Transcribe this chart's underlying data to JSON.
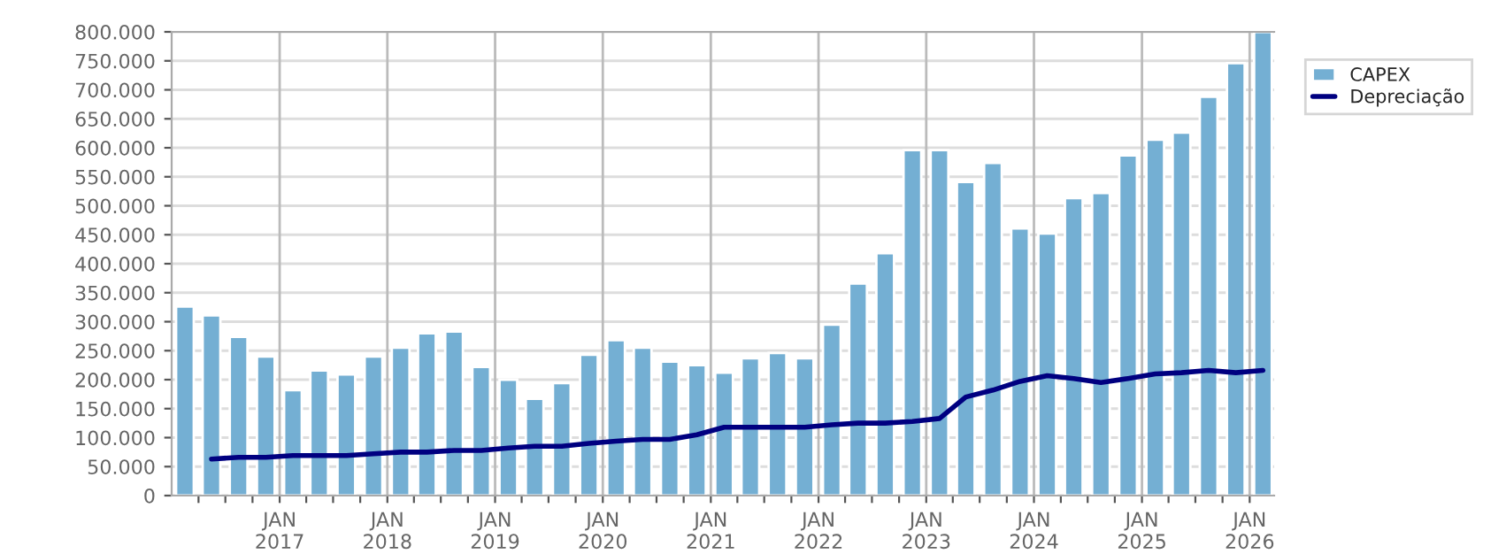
{
  "chart_data": {
    "type": "bar",
    "x": [
      "2016-02-15",
      "2016-05-15",
      "2016-08-15",
      "2016-11-15",
      "2017-02-15",
      "2017-05-15",
      "2017-08-15",
      "2017-11-15",
      "2018-02-15",
      "2018-05-15",
      "2018-08-15",
      "2018-11-15",
      "2019-02-15",
      "2019-05-15",
      "2019-08-15",
      "2019-11-15",
      "2020-02-15",
      "2020-05-15",
      "2020-08-15",
      "2020-11-15",
      "2021-02-15",
      "2021-05-15",
      "2021-08-15",
      "2021-11-15",
      "2022-02-15",
      "2022-05-15",
      "2022-08-15",
      "2022-11-15",
      "2023-02-15",
      "2023-05-15",
      "2023-08-15",
      "2023-11-15",
      "2024-02-15",
      "2024-05-15",
      "2024-08-15",
      "2024-11-15",
      "2025-02-15",
      "2025-05-15",
      "2025-08-15",
      "2025-11-15",
      "2026-02-15"
    ],
    "series": [
      {
        "name": "CAPEX",
        "color": "#74afd3",
        "values": [
          326000,
          311000,
          274000,
          240000,
          182000,
          216000,
          209000,
          240000,
          255000,
          280000,
          283000,
          222000,
          200000,
          167000,
          194000,
          243000,
          268000,
          255000,
          231000,
          225000,
          212000,
          237000,
          246000,
          237000,
          295000,
          366000,
          418000,
          596000,
          596000,
          541000,
          574000,
          461000,
          452000,
          513000,
          522000,
          587000,
          614000,
          626000,
          688000,
          746000,
          800000
        ]
      },
      {
        "name": "Depreciação",
        "type": "line",
        "color": "#000080",
        "values": [
          null,
          63000,
          66000,
          66000,
          69000,
          69000,
          69000,
          72000,
          75000,
          75000,
          78000,
          78000,
          82000,
          85000,
          85000,
          90000,
          94000,
          97000,
          97000,
          105000,
          118000,
          118000,
          118000,
          118000,
          122000,
          125000,
          125000,
          128000,
          133000,
          170000,
          182000,
          197000,
          207000,
          202000,
          195000,
          202000,
          210000,
          212000,
          216000,
          212000,
          216000
        ]
      }
    ],
    "xlim": [
      "2016-01-01",
      "2026-03-25"
    ],
    "xticks": [
      {
        "value": "2016-04-01",
        "label": null
      },
      {
        "value": "2016-07-01",
        "label": null
      },
      {
        "value": "2016-10-01",
        "label": null
      },
      {
        "value": "2017-01-01",
        "label": "JAN\n2017"
      },
      {
        "value": "2017-04-01",
        "label": null
      },
      {
        "value": "2017-07-01",
        "label": null
      },
      {
        "value": "2017-10-01",
        "label": null
      },
      {
        "value": "2018-01-01",
        "label": "JAN\n2018"
      },
      {
        "value": "2018-04-01",
        "label": null
      },
      {
        "value": "2018-07-01",
        "label": null
      },
      {
        "value": "2018-10-01",
        "label": null
      },
      {
        "value": "2019-01-01",
        "label": "JAN\n2019"
      },
      {
        "value": "2019-04-01",
        "label": null
      },
      {
        "value": "2019-07-01",
        "label": null
      },
      {
        "value": "2019-10-01",
        "label": null
      },
      {
        "value": "2020-01-01",
        "label": "JAN\n2020"
      },
      {
        "value": "2020-04-01",
        "label": null
      },
      {
        "value": "2020-07-01",
        "label": null
      },
      {
        "value": "2020-10-01",
        "label": null
      },
      {
        "value": "2021-01-01",
        "label": "JAN\n2021"
      },
      {
        "value": "2021-04-01",
        "label": null
      },
      {
        "value": "2021-07-01",
        "label": null
      },
      {
        "value": "2021-10-01",
        "label": null
      },
      {
        "value": "2022-01-01",
        "label": "JAN\n2022"
      },
      {
        "value": "2022-04-01",
        "label": null
      },
      {
        "value": "2022-07-01",
        "label": null
      },
      {
        "value": "2022-10-01",
        "label": null
      },
      {
        "value": "2023-01-01",
        "label": "JAN\n2023"
      },
      {
        "value": "2023-04-01",
        "label": null
      },
      {
        "value": "2023-07-01",
        "label": null
      },
      {
        "value": "2023-10-01",
        "label": null
      },
      {
        "value": "2024-01-01",
        "label": "JAN\n2024"
      },
      {
        "value": "2024-04-01",
        "label": null
      },
      {
        "value": "2024-07-01",
        "label": null
      },
      {
        "value": "2024-10-01",
        "label": null
      },
      {
        "value": "2025-01-01",
        "label": "JAN\n2025"
      },
      {
        "value": "2025-04-01",
        "label": null
      },
      {
        "value": "2025-07-01",
        "label": null
      },
      {
        "value": "2025-10-01",
        "label": null
      },
      {
        "value": "2026-01-01",
        "label": "JAN\n2026"
      }
    ],
    "ylim": [
      0,
      800000
    ],
    "yticks": [
      {
        "value": 0,
        "label": "0"
      },
      {
        "value": 50000,
        "label": "50.000"
      },
      {
        "value": 100000,
        "label": "100.000"
      },
      {
        "value": 150000,
        "label": "150.000"
      },
      {
        "value": 200000,
        "label": "200.000"
      },
      {
        "value": 250000,
        "label": "250.000"
      },
      {
        "value": 300000,
        "label": "300.000"
      },
      {
        "value": 350000,
        "label": "350.000"
      },
      {
        "value": 400000,
        "label": "400.000"
      },
      {
        "value": 450000,
        "label": "450.000"
      },
      {
        "value": 500000,
        "label": "500.000"
      },
      {
        "value": 550000,
        "label": "550.000"
      },
      {
        "value": 600000,
        "label": "600.000"
      },
      {
        "value": 650000,
        "label": "650.000"
      },
      {
        "value": 700000,
        "label": "700.000"
      },
      {
        "value": 750000,
        "label": "750.000"
      },
      {
        "value": 800000,
        "label": "800.000"
      }
    ],
    "grid": true,
    "legend": "right"
  }
}
